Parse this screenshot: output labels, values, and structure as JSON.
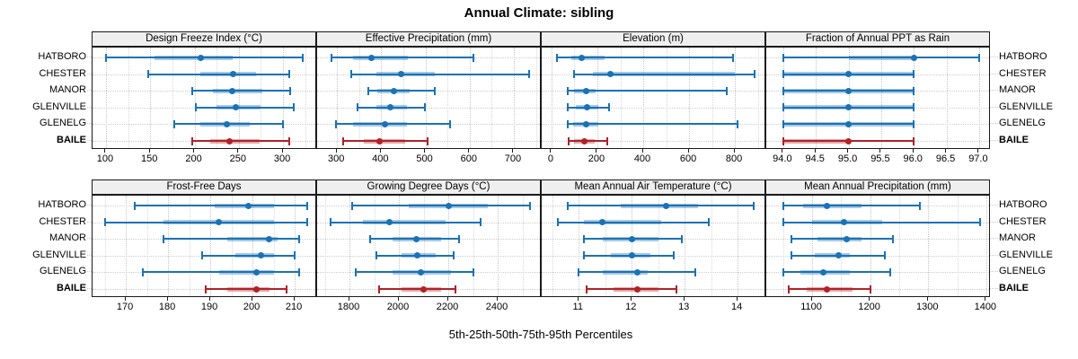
{
  "title": "Annual Climate: sibling",
  "caption": "5th-25th-50th-75th-95th Percentiles",
  "locations": [
    "HATBORO",
    "CHESTER",
    "MANOR",
    "GLENVILLE",
    "GLENELG",
    "BAILE"
  ],
  "highlight_location": "BAILE",
  "colors": {
    "series_blue": "#1a72b6",
    "series_red": "#b12126",
    "header_bg": "#efefef",
    "panel_border": "#1a1a1a",
    "gridline": "#c4c4c4"
  },
  "percentile_labels": [
    "5th",
    "25th",
    "50th",
    "75th",
    "95th"
  ],
  "chart_data": [
    {
      "type": "dot-whisker-percentile",
      "row": 0,
      "col": 0,
      "title": "Design Freeze Index (°C)",
      "xlim": [
        84.8,
        338.5
      ],
      "tick_values": [
        100,
        150,
        200,
        250,
        300
      ],
      "tick_labels": [
        "100",
        "150",
        "200",
        "250",
        "300"
      ],
      "minor_gridlines": true,
      "series": [
        {
          "name": "HATBORO",
          "values": [
            100,
            155,
            207,
            243,
            322
          ]
        },
        {
          "name": "CHESTER",
          "values": [
            148,
            207,
            244,
            270,
            307
          ]
        },
        {
          "name": "MANOR",
          "values": [
            197,
            221,
            243,
            277,
            308
          ]
        },
        {
          "name": "GLENVILLE",
          "values": [
            202,
            225,
            247,
            275,
            312
          ]
        },
        {
          "name": "GLENELG",
          "values": [
            177,
            207,
            237,
            262,
            300
          ]
        },
        {
          "name": "BAILE",
          "values": [
            197,
            218,
            240,
            274,
            307
          ]
        }
      ]
    },
    {
      "type": "dot-whisker-percentile",
      "row": 0,
      "col": 1,
      "title": "Effective Precipitation (mm)",
      "xlim": [
        255,
        763
      ],
      "tick_values": [
        300,
        400,
        500,
        600,
        700
      ],
      "tick_labels": [
        "300",
        "400",
        "500",
        "600",
        "700"
      ],
      "minor_gridlines": true,
      "series": [
        {
          "name": "HATBORO",
          "values": [
            288,
            336,
            377,
            460,
            608
          ]
        },
        {
          "name": "CHESTER",
          "values": [
            333,
            389,
            445,
            522,
            735
          ]
        },
        {
          "name": "MANOR",
          "values": [
            371,
            392,
            428,
            465,
            521
          ]
        },
        {
          "name": "GLENVILLE",
          "values": [
            347,
            390,
            421,
            458,
            499
          ]
        },
        {
          "name": "GLENELG",
          "values": [
            298,
            336,
            409,
            458,
            555
          ]
        },
        {
          "name": "BAILE",
          "values": [
            314,
            360,
            397,
            455,
            504
          ]
        }
      ]
    },
    {
      "type": "dot-whisker-percentile",
      "row": 0,
      "col": 2,
      "title": "Elevation (m)",
      "xlim": [
        -43,
        937
      ],
      "tick_values": [
        0,
        200,
        400,
        600,
        800
      ],
      "tick_labels": [
        "0",
        "200",
        "400",
        "600",
        "800"
      ],
      "minor_gridlines": true,
      "series": [
        {
          "name": "HATBORO",
          "values": [
            25,
            85,
            133,
            230,
            790
          ]
        },
        {
          "name": "CHESTER",
          "values": [
            98,
            179,
            255,
            800,
            885
          ]
        },
        {
          "name": "MANOR",
          "values": [
            71,
            100,
            150,
            192,
            765
          ]
        },
        {
          "name": "GLENVILLE",
          "values": [
            71,
            104,
            155,
            204,
            251
          ]
        },
        {
          "name": "GLENELG",
          "values": [
            71,
            94,
            150,
            204,
            812
          ]
        },
        {
          "name": "BAILE",
          "values": [
            76,
            98,
            145,
            190,
            243
          ]
        }
      ]
    },
    {
      "type": "dot-whisker-percentile",
      "row": 0,
      "col": 3,
      "title": "Fraction of Annual PPT as Rain",
      "xlim": [
        93.74,
        97.18
      ],
      "tick_values": [
        94.0,
        94.5,
        95.0,
        95.5,
        96.0,
        96.5,
        97.0
      ],
      "tick_labels": [
        "94.0",
        "94.5",
        "95.0",
        "95.5",
        "96.0",
        "96.5",
        "97.0"
      ],
      "minor_gridlines": false,
      "series": [
        {
          "name": "HATBORO",
          "values": [
            94,
            95,
            96,
            96,
            97
          ]
        },
        {
          "name": "CHESTER",
          "values": [
            94,
            94,
            95,
            96,
            96
          ]
        },
        {
          "name": "MANOR",
          "values": [
            94,
            94,
            95,
            96,
            96
          ]
        },
        {
          "name": "GLENVILLE",
          "values": [
            94,
            94,
            95,
            96,
            96
          ]
        },
        {
          "name": "GLENELG",
          "values": [
            94,
            94,
            95,
            96,
            96
          ]
        },
        {
          "name": "BAILE",
          "values": [
            94,
            94,
            95,
            95,
            96
          ]
        }
      ]
    },
    {
      "type": "dot-whisker-percentile",
      "row": 1,
      "col": 0,
      "title": "Frost-Free Days",
      "xlim": [
        162.1,
        215.3
      ],
      "tick_values": [
        170,
        180,
        190,
        200,
        210
      ],
      "tick_labels": [
        "170",
        "180",
        "190",
        "200",
        "210"
      ],
      "minor_gridlines": true,
      "series": [
        {
          "name": "HATBORO",
          "values": [
            172,
            191,
            199,
            205,
            213
          ]
        },
        {
          "name": "CHESTER",
          "values": [
            165,
            179,
            192,
            205,
            213
          ]
        },
        {
          "name": "MANOR",
          "values": [
            179,
            194,
            204,
            206,
            211
          ]
        },
        {
          "name": "GLENVILLE",
          "values": [
            188,
            196,
            202,
            205,
            210
          ]
        },
        {
          "name": "GLENELG",
          "values": [
            174,
            192,
            201,
            205,
            211
          ]
        },
        {
          "name": "BAILE",
          "values": [
            189,
            194,
            201,
            204,
            208
          ]
        }
      ]
    },
    {
      "type": "dot-whisker-percentile",
      "row": 1,
      "col": 1,
      "title": "Growing Degree Days (°C)",
      "xlim": [
        1669,
        2578
      ],
      "tick_values": [
        1800,
        2000,
        2200,
        2400
      ],
      "tick_labels": [
        "1800",
        "2000",
        "2200",
        "2400"
      ],
      "minor_gridlines": true,
      "series": [
        {
          "name": "HATBORO",
          "values": [
            1810,
            2040,
            2200,
            2360,
            2530
          ]
        },
        {
          "name": "CHESTER",
          "values": [
            1725,
            1855,
            1960,
            2190,
            2330
          ]
        },
        {
          "name": "MANOR",
          "values": [
            1885,
            1975,
            2070,
            2170,
            2245
          ]
        },
        {
          "name": "GLENVILLE",
          "values": [
            1910,
            2010,
            2075,
            2150,
            2220
          ]
        },
        {
          "name": "GLENELG",
          "values": [
            1825,
            1975,
            2090,
            2210,
            2300
          ]
        },
        {
          "name": "BAILE",
          "values": [
            1920,
            2010,
            2100,
            2170,
            2230
          ]
        }
      ]
    },
    {
      "type": "dot-whisker-percentile",
      "row": 1,
      "col": 2,
      "title": "Mean Annual Air Temperature (°C)",
      "xlim": [
        10.3,
        14.54
      ],
      "tick_values": [
        11,
        12,
        13,
        14
      ],
      "tick_labels": [
        "11",
        "12",
        "13",
        "14"
      ],
      "minor_gridlines": true,
      "series": [
        {
          "name": "HATBORO",
          "values": [
            10.8,
            11.8,
            12.65,
            13.25,
            14.3
          ]
        },
        {
          "name": "CHESTER",
          "values": [
            10.6,
            11.1,
            11.45,
            12.55,
            13.45
          ]
        },
        {
          "name": "MANOR",
          "values": [
            11.1,
            11.45,
            12.0,
            12.5,
            12.95
          ]
        },
        {
          "name": "GLENVILLE",
          "values": [
            11.1,
            11.6,
            12.0,
            12.35,
            12.8
          ]
        },
        {
          "name": "GLENELG",
          "values": [
            11.0,
            11.45,
            12.1,
            12.3,
            13.2
          ]
        },
        {
          "name": "BAILE",
          "values": [
            11.15,
            11.65,
            12.1,
            12.5,
            12.85
          ]
        }
      ]
    },
    {
      "type": "dot-whisker-percentile",
      "row": 1,
      "col": 3,
      "title": "Mean Annual Precipitation (mm)",
      "xlim": [
        1021,
        1408
      ],
      "tick_values": [
        1100,
        1200,
        1300,
        1400
      ],
      "tick_labels": [
        "1100",
        "1200",
        "1300",
        "1400"
      ],
      "minor_gridlines": true,
      "series": [
        {
          "name": "HATBORO",
          "values": [
            1050,
            1085,
            1125,
            1185,
            1285
          ]
        },
        {
          "name": "CHESTER",
          "values": [
            1050,
            1100,
            1155,
            1220,
            1390
          ]
        },
        {
          "name": "MANOR",
          "values": [
            1065,
            1110,
            1160,
            1185,
            1240
          ]
        },
        {
          "name": "GLENVILLE",
          "values": [
            1065,
            1105,
            1145,
            1165,
            1225
          ]
        },
        {
          "name": "GLENELG",
          "values": [
            1050,
            1080,
            1120,
            1165,
            1235
          ]
        },
        {
          "name": "BAILE",
          "values": [
            1060,
            1090,
            1125,
            1170,
            1200
          ]
        }
      ]
    }
  ]
}
